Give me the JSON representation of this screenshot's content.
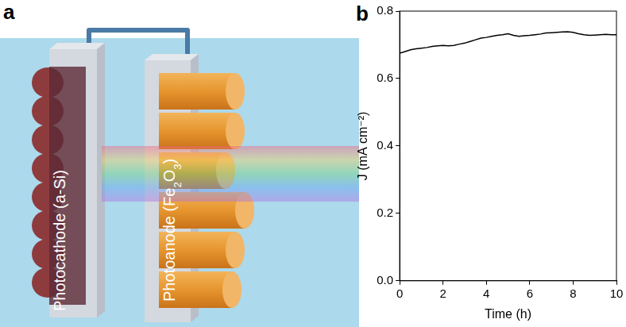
{
  "diagram": {
    "panel_label": "a",
    "photocathode_label": "Photocathode (a-Si)",
    "photoanode_label": "Photoanode (Fe2O3)"
  },
  "chart_data": {
    "panel_label": "b",
    "type": "line",
    "x_label": "Time (h)",
    "y_label": "J (mA cm⁻²)",
    "x": [
      0,
      0.25,
      0.5,
      0.75,
      1,
      1.25,
      1.5,
      1.75,
      2,
      2.25,
      2.5,
      2.75,
      3,
      3.25,
      3.5,
      3.75,
      4,
      4.25,
      4.5,
      4.75,
      5,
      5.25,
      5.5,
      5.75,
      6,
      6.25,
      6.5,
      6.75,
      7,
      7.25,
      7.5,
      7.75,
      8,
      8.25,
      8.5,
      8.75,
      9,
      9.25,
      9.5,
      9.75,
      10
    ],
    "values": [
      0.675,
      0.68,
      0.685,
      0.688,
      0.69,
      0.692,
      0.695,
      0.697,
      0.698,
      0.697,
      0.698,
      0.702,
      0.705,
      0.71,
      0.715,
      0.72,
      0.722,
      0.725,
      0.728,
      0.73,
      0.733,
      0.728,
      0.725,
      0.727,
      0.728,
      0.73,
      0.732,
      0.735,
      0.736,
      0.737,
      0.738,
      0.739,
      0.737,
      0.733,
      0.73,
      0.728,
      0.729,
      0.73,
      0.731,
      0.73,
      0.73
    ],
    "color": "#000000",
    "xlim": [
      0,
      10
    ],
    "xticks": [
      0,
      2,
      4,
      6,
      8,
      10
    ],
    "ylim": [
      0,
      0.8
    ],
    "yticks": [
      {
        "value": 0,
        "label": "0.0"
      },
      0.2,
      0.4,
      0.6,
      0.8
    ],
    "grid": false
  }
}
